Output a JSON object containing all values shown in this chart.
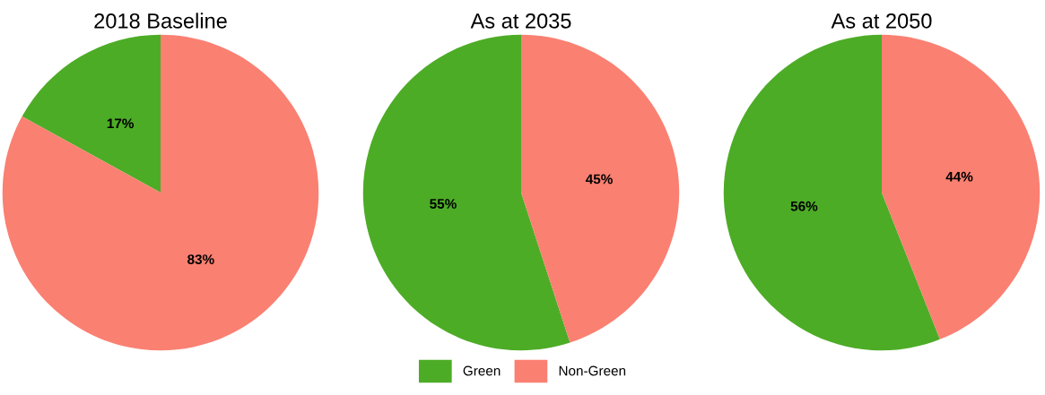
{
  "chart_data": [
    {
      "type": "pie",
      "title": "2018 Baseline",
      "categories": [
        "Green",
        "Non-Green"
      ],
      "values": [
        17,
        83
      ],
      "colors": [
        "#4dac26",
        "#fa8072"
      ],
      "value_labels": [
        "17%",
        "83%"
      ],
      "legend": "bottom"
    },
    {
      "type": "pie",
      "title": "As at 2035",
      "categories": [
        null,
        null
      ],
      "values": [
        55,
        45
      ],
      "colors": [
        "#4dac26",
        "#fa8072"
      ],
      "value_labels": [
        "55%",
        "45%"
      ]
    },
    {
      "type": "pie",
      "title": "As at 2050",
      "categories": [
        null,
        null
      ],
      "values": [
        56,
        44
      ],
      "colors": [
        "#4dac26",
        "#fa8072"
      ],
      "value_labels": [
        "56%",
        "44%"
      ]
    }
  ]
}
